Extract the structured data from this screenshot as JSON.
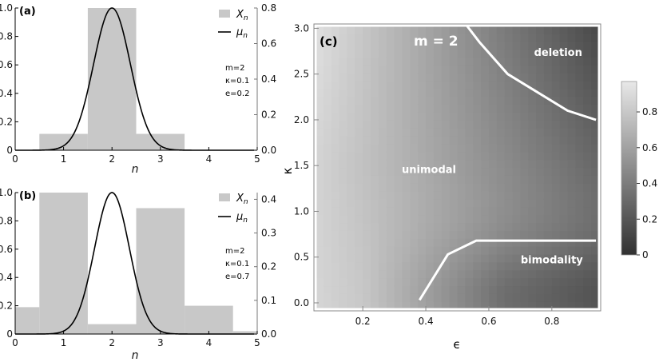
{
  "chart_data": [
    {
      "panel": "(a)",
      "type": "bar",
      "xlabel": "n",
      "xlim": [
        0,
        5
      ],
      "xticks": [
        "0",
        "1",
        "2",
        "3",
        "4",
        "5"
      ],
      "ylim_left": [
        0,
        1.0
      ],
      "yticks_left": [
        "0",
        "0.2",
        "0.4",
        "0.6",
        "0.8",
        "1.0"
      ],
      "ylim_right": [
        0,
        0.8
      ],
      "yticks_right": [
        "0.0",
        "0.2",
        "0.4",
        "0.6",
        "0.8"
      ],
      "bars": {
        "x": [
          1,
          2,
          3
        ],
        "width": 1,
        "values": [
          0.115,
          1.0,
          0.115
        ]
      },
      "curve": {
        "mean": 2,
        "sd": 0.38,
        "peak": 1.0
      },
      "legend": [
        {
          "key": "X",
          "sub": "n"
        },
        {
          "key": "μ",
          "sub": "n"
        }
      ],
      "params": [
        "m=2",
        "κ=0.1",
        "e=0.2"
      ],
      "colors": {
        "bar": "#c8c8c8",
        "curve": "#000000"
      }
    },
    {
      "panel": "(b)",
      "type": "bar",
      "xlabel": "n",
      "xlim": [
        0,
        5
      ],
      "xticks": [
        "0",
        "1",
        "2",
        "3",
        "4",
        "5"
      ],
      "ylim_left": [
        0,
        1.0
      ],
      "yticks_left": [
        "0",
        "0.2",
        "0.4",
        "0.6",
        "0.8",
        "1.0"
      ],
      "ylim_right": [
        0,
        0.42
      ],
      "yticks_right": [
        "0.0",
        "0.1",
        "0.2",
        "0.3",
        "0.4"
      ],
      "bars": {
        "x": [
          0,
          1,
          2,
          3,
          4,
          5
        ],
        "width": 1,
        "values": [
          0.19,
          1.0,
          0.07,
          0.89,
          0.2,
          0.02
        ]
      },
      "curve": {
        "mean": 2,
        "sd": 0.36,
        "peak": 1.0
      },
      "legend": [
        {
          "key": "X",
          "sub": "n"
        },
        {
          "key": "μ",
          "sub": "n"
        }
      ],
      "params": [
        "m=2",
        "κ=0.1",
        "e=0.7"
      ],
      "colors": {
        "bar": "#c8c8c8",
        "curve": "#000000"
      }
    },
    {
      "panel": "(c)",
      "type": "heatmap",
      "title": "m = 2",
      "xlabel": "ϵ",
      "ylabel": "κ",
      "xlim": [
        0.05,
        0.95
      ],
      "ylim": [
        -0.07,
        3.03
      ],
      "xticks": [
        0.2,
        0.4,
        0.6,
        0.8
      ],
      "xtick_labels": [
        "0.2",
        "0.4",
        "0.6",
        "0.8"
      ],
      "yticks": [
        0.0,
        0.5,
        1.0,
        1.5,
        2.0,
        2.5,
        3.0
      ],
      "ytick_labels": [
        "0.0",
        "0.5",
        "1.0",
        "1.5",
        "2.0",
        "2.5",
        "3.0"
      ],
      "colorbar": {
        "range": [
          0,
          0.97
        ],
        "ticks": [
          0,
          0.2,
          0.4,
          0.6,
          0.8
        ],
        "tick_labels": [
          "0",
          "0.2",
          "0.4",
          "0.6",
          "0.8"
        ]
      },
      "boundaries": [
        {
          "name": "deletion",
          "points": [
            [
              0.53,
              3.03
            ],
            [
              0.57,
              2.85
            ],
            [
              0.66,
              2.5
            ],
            [
              0.85,
              2.1
            ],
            [
              0.94,
              2.0
            ]
          ]
        },
        {
          "name": "bimodality",
          "points": [
            [
              0.38,
              0.03
            ],
            [
              0.47,
              0.53
            ],
            [
              0.56,
              0.68
            ],
            [
              0.94,
              0.68
            ]
          ]
        }
      ],
      "regions": [
        {
          "label": "deletion",
          "x": 0.82,
          "y": 2.7
        },
        {
          "label": "unimodal",
          "x": 0.41,
          "y": 1.42
        },
        {
          "label": "bimodality",
          "x": 0.8,
          "y": 0.43
        }
      ],
      "colors": {
        "boundary": "#ffffff",
        "light": "#e6e6e6",
        "dark": "#303030"
      }
    }
  ]
}
